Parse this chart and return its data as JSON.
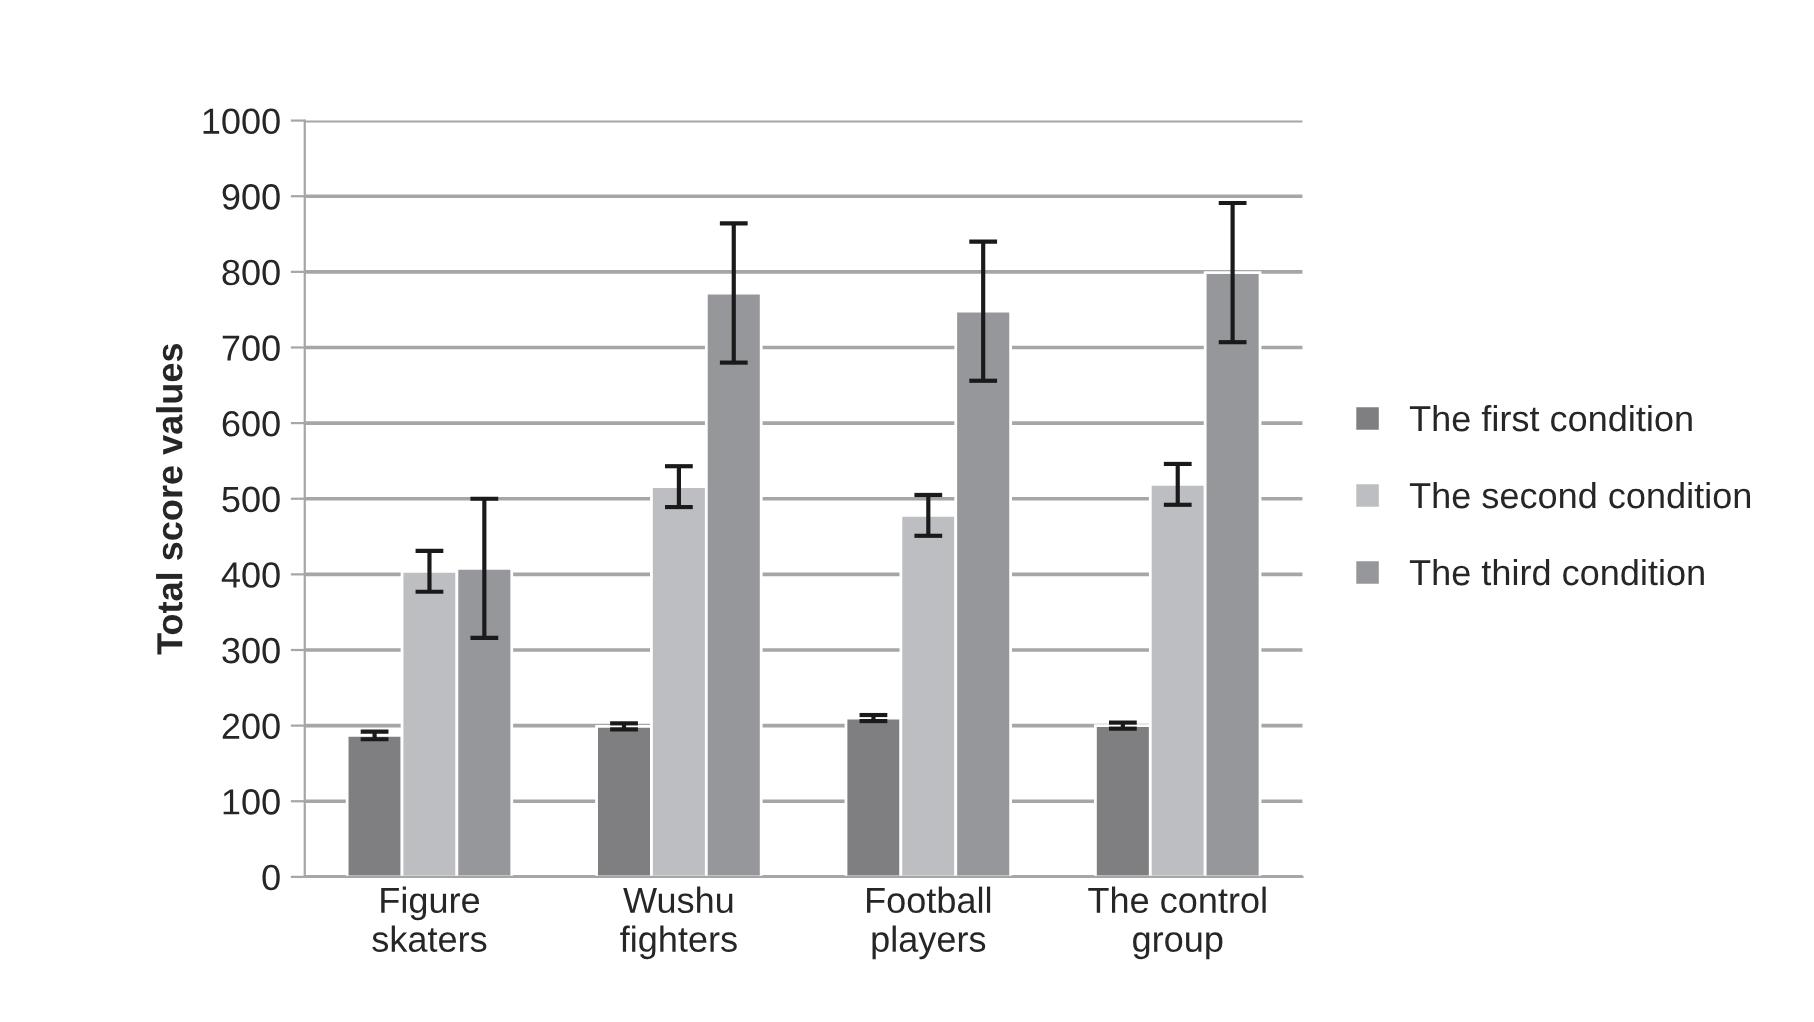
{
  "chart_data": {
    "type": "bar",
    "ylabel": "Total score values",
    "categories": [
      "Figure\nskaters",
      "Wushu\nfighters",
      "Football\nplayers",
      "The control\ngroup"
    ],
    "series": [
      {
        "name": "The first condition",
        "color": "#7f7f82",
        "values": [
          187,
          199,
          210,
          200
        ],
        "errors": [
          5,
          4,
          4,
          4
        ]
      },
      {
        "name": "The second condition",
        "color": "#bdbec2",
        "values": [
          404,
          516,
          478,
          519
        ],
        "errors": [
          27,
          27,
          27,
          27
        ]
      },
      {
        "name": "The third condition",
        "color": "#96979b",
        "values": [
          408,
          772,
          748,
          799
        ],
        "errors": [
          92,
          92,
          92,
          92
        ]
      }
    ],
    "ylim": [
      0,
      1000
    ],
    "yticks": [
      0,
      100,
      200,
      300,
      400,
      500,
      600,
      700,
      800,
      900,
      1000
    ],
    "grid": "y",
    "legend": "right"
  }
}
